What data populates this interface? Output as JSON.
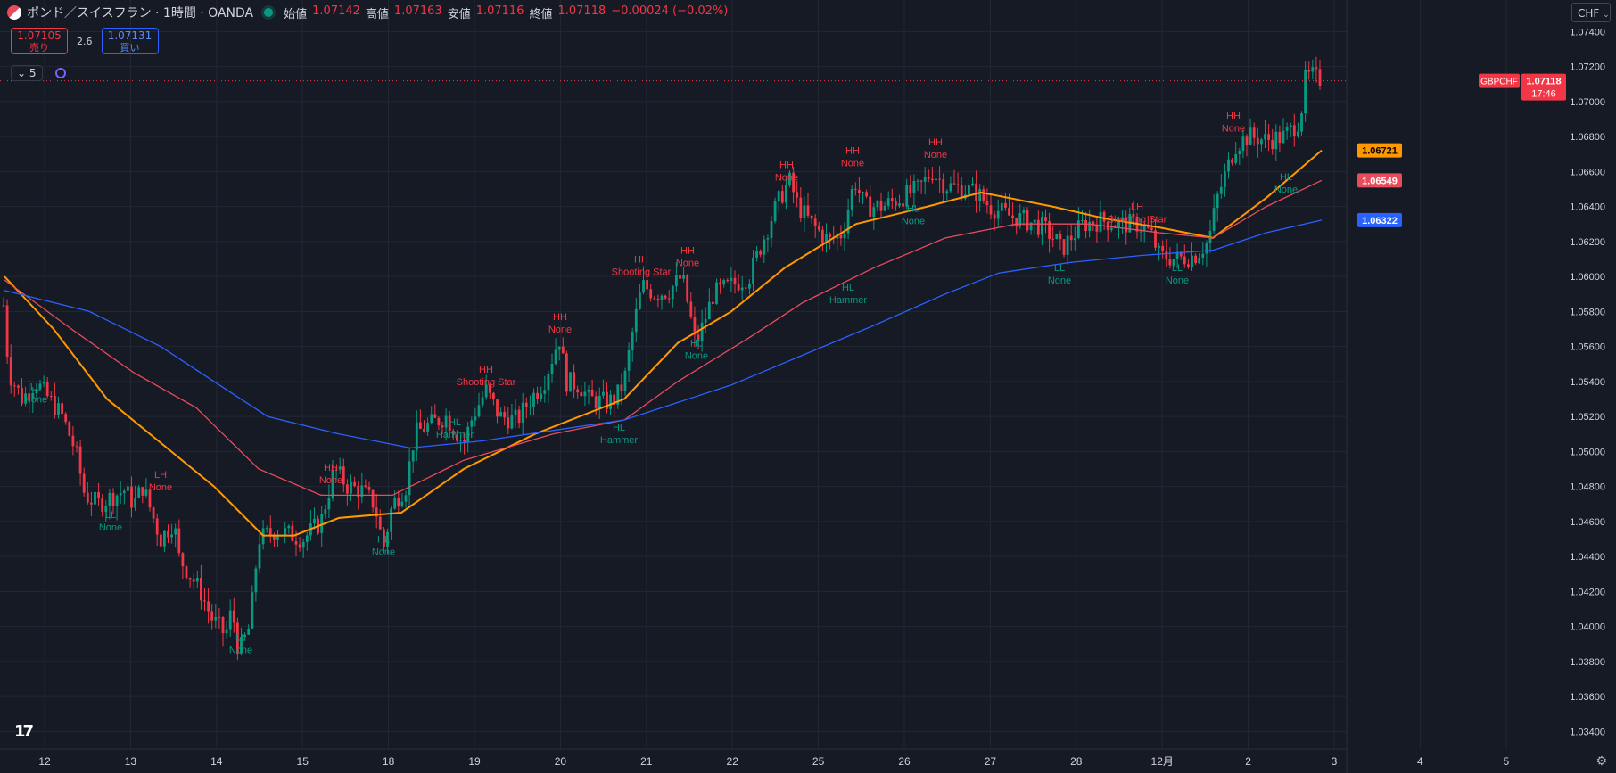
{
  "header": {
    "title": "ポンド／スイスフラン · 1時間 · OANDA",
    "ohlc": [
      {
        "label": "始値",
        "value": "1.07142"
      },
      {
        "label": "高値",
        "value": "1.07163"
      },
      {
        "label": "安値",
        "value": "1.07116"
      },
      {
        "label": "終値",
        "value": "1.07118"
      }
    ],
    "change": "−0.00024 (−0.02%)"
  },
  "trade": {
    "sell_price": "1.07105",
    "sell_label": "売り",
    "spread": "2.6",
    "buy_price": "1.07131",
    "buy_label": "買い"
  },
  "indicators": {
    "count": "5"
  },
  "currency": "CHF",
  "colors": {
    "background": "#161a25",
    "up": "#089981",
    "down": "#f23645",
    "ma_fast": "#ff9800",
    "ma_mid": "#e84c5a",
    "ma_slow": "#2962ff"
  },
  "icons": [
    "symbol-flag-icon",
    "live-dot-icon",
    "chevron-down-icon",
    "loading-icon",
    "tradingview-logo-icon",
    "gear-icon"
  ],
  "chart_data": {
    "type": "candlestick",
    "symbol_tag": "GBPCHF",
    "last_price": 1.07118,
    "countdown": "17:46",
    "ylim": [
      1.033,
      1.0758
    ],
    "y_ticks": [
      1.034,
      1.036,
      1.038,
      1.04,
      1.042,
      1.044,
      1.046,
      1.048,
      1.05,
      1.052,
      1.054,
      1.056,
      1.058,
      1.06,
      1.062,
      1.064,
      1.066,
      1.068,
      1.07,
      1.072,
      1.074
    ],
    "x_ticks": [
      "12",
      "13",
      "14",
      "15",
      "18",
      "19",
      "20",
      "21",
      "22",
      "25",
      "26",
      "27",
      "28",
      "12月",
      "2",
      "3",
      "4",
      "5"
    ],
    "price_path": [
      [
        0,
        1.06
      ],
      [
        3,
        1.059
      ],
      [
        10,
        1.0545
      ],
      [
        25,
        1.053
      ],
      [
        40,
        1.054
      ],
      [
        70,
        1.052
      ],
      [
        85,
        1.05
      ],
      [
        95,
        1.0475
      ],
      [
        110,
        1.047
      ],
      [
        140,
        1.0478
      ],
      [
        150,
        1.047
      ],
      [
        160,
        1.048
      ],
      [
        180,
        1.045
      ],
      [
        195,
        1.046
      ],
      [
        200,
        1.044
      ],
      [
        225,
        1.042
      ],
      [
        237,
        1.0405
      ],
      [
        253,
        1.0395
      ],
      [
        260,
        1.041
      ],
      [
        268,
        1.0385
      ],
      [
        280,
        1.04
      ],
      [
        290,
        1.045
      ],
      [
        310,
        1.0455
      ],
      [
        340,
        1.045
      ],
      [
        360,
        1.046
      ],
      [
        375,
        1.049
      ],
      [
        390,
        1.048
      ],
      [
        405,
        1.0478
      ],
      [
        420,
        1.047
      ],
      [
        430,
        1.0445
      ],
      [
        440,
        1.047
      ],
      [
        455,
        1.048
      ],
      [
        465,
        1.051
      ],
      [
        480,
        1.0515
      ],
      [
        500,
        1.052
      ],
      [
        520,
        1.0505
      ],
      [
        530,
        1.052
      ],
      [
        545,
        1.0535
      ],
      [
        560,
        1.052
      ],
      [
        580,
        1.0518
      ],
      [
        595,
        1.053
      ],
      [
        610,
        1.054
      ],
      [
        627,
        1.0565
      ],
      [
        635,
        1.054
      ],
      [
        650,
        1.0538
      ],
      [
        660,
        1.053
      ],
      [
        680,
        1.0528
      ],
      [
        690,
        1.053
      ],
      [
        700,
        1.054
      ],
      [
        710,
        1.057
      ],
      [
        720,
        1.0595
      ],
      [
        735,
        1.059
      ],
      [
        750,
        1.0592
      ],
      [
        765,
        1.06
      ],
      [
        775,
        1.0575
      ],
      [
        780,
        1.056
      ],
      [
        790,
        1.0575
      ],
      [
        800,
        1.059
      ],
      [
        820,
        1.0595
      ],
      [
        840,
        1.06
      ],
      [
        855,
        1.062
      ],
      [
        870,
        1.064
      ],
      [
        885,
        1.0655
      ],
      [
        895,
        1.064
      ],
      [
        910,
        1.063
      ],
      [
        930,
        1.062
      ],
      [
        945,
        1.0625
      ],
      [
        958,
        1.0655
      ],
      [
        970,
        1.064
      ],
      [
        990,
        1.064
      ],
      [
        1010,
        1.0645
      ],
      [
        1030,
        1.065
      ],
      [
        1045,
        1.066
      ],
      [
        1060,
        1.0652
      ],
      [
        1080,
        1.065
      ],
      [
        1095,
        1.0648
      ],
      [
        1110,
        1.064
      ],
      [
        1130,
        1.0635
      ],
      [
        1150,
        1.0632
      ],
      [
        1170,
        1.0628
      ],
      [
        1185,
        1.062
      ],
      [
        1190,
        1.0615
      ],
      [
        1200,
        1.0622
      ],
      [
        1215,
        1.063
      ],
      [
        1235,
        1.0632
      ],
      [
        1255,
        1.063
      ],
      [
        1275,
        1.063
      ],
      [
        1290,
        1.0625
      ],
      [
        1300,
        1.0612
      ],
      [
        1320,
        1.061
      ],
      [
        1340,
        1.0612
      ],
      [
        1355,
        1.062
      ],
      [
        1365,
        1.0645
      ],
      [
        1375,
        1.066
      ],
      [
        1385,
        1.0675
      ],
      [
        1400,
        1.068
      ],
      [
        1420,
        1.0678
      ],
      [
        1440,
        1.068
      ],
      [
        1450,
        1.0685
      ],
      [
        1458,
        1.069
      ],
      [
        1463,
        1.0712
      ],
      [
        1470,
        1.0715
      ],
      [
        1482,
        1.07118
      ]
    ],
    "moving_averages": [
      {
        "color": "#ff9800",
        "last": 1.06721,
        "points": [
          [
            5,
            1.06
          ],
          [
            60,
            1.057
          ],
          [
            120,
            1.053
          ],
          [
            180,
            1.0505
          ],
          [
            240,
            1.048
          ],
          [
            295,
            1.0452
          ],
          [
            330,
            1.0452
          ],
          [
            380,
            1.0462
          ],
          [
            450,
            1.0465
          ],
          [
            520,
            1.049
          ],
          [
            600,
            1.051
          ],
          [
            700,
            1.053
          ],
          [
            760,
            1.0562
          ],
          [
            820,
            1.058
          ],
          [
            880,
            1.0605
          ],
          [
            960,
            1.063
          ],
          [
            1040,
            1.064
          ],
          [
            1100,
            1.0648
          ],
          [
            1180,
            1.064
          ],
          [
            1240,
            1.0633
          ],
          [
            1300,
            1.0628
          ],
          [
            1360,
            1.0622
          ],
          [
            1420,
            1.0645
          ],
          [
            1482,
            1.06721
          ]
        ]
      },
      {
        "color": "#e84c5a",
        "last": 1.06549,
        "points": [
          [
            5,
            1.0598
          ],
          [
            80,
            1.057
          ],
          [
            150,
            1.0545
          ],
          [
            220,
            1.0525
          ],
          [
            290,
            1.049
          ],
          [
            360,
            1.0475
          ],
          [
            440,
            1.0475
          ],
          [
            520,
            1.0495
          ],
          [
            620,
            1.051
          ],
          [
            700,
            1.0518
          ],
          [
            760,
            1.054
          ],
          [
            840,
            1.0565
          ],
          [
            900,
            1.0585
          ],
          [
            980,
            1.0605
          ],
          [
            1060,
            1.0622
          ],
          [
            1140,
            1.063
          ],
          [
            1220,
            1.063
          ],
          [
            1300,
            1.0625
          ],
          [
            1360,
            1.0622
          ],
          [
            1420,
            1.064
          ],
          [
            1482,
            1.06549
          ]
        ]
      },
      {
        "color": "#2962ff",
        "last": 1.06322,
        "points": [
          [
            5,
            1.0592
          ],
          [
            100,
            1.058
          ],
          [
            180,
            1.056
          ],
          [
            240,
            1.054
          ],
          [
            300,
            1.052
          ],
          [
            380,
            1.051
          ],
          [
            460,
            1.0502
          ],
          [
            540,
            1.0506
          ],
          [
            620,
            1.0512
          ],
          [
            700,
            1.0518
          ],
          [
            760,
            1.0528
          ],
          [
            820,
            1.0538
          ],
          [
            900,
            1.0555
          ],
          [
            980,
            1.0572
          ],
          [
            1060,
            1.059
          ],
          [
            1120,
            1.0602
          ],
          [
            1200,
            1.0608
          ],
          [
            1280,
            1.0612
          ],
          [
            1360,
            1.0615
          ],
          [
            1420,
            1.0625
          ],
          [
            1482,
            1.06322
          ]
        ]
      }
    ],
    "annotations": [
      {
        "type": "LL",
        "pattern": "None",
        "x": 40,
        "price": 1.0535
      },
      {
        "type": "LL",
        "pattern": "None",
        "x": 124,
        "price": 1.0462
      },
      {
        "type": "LH",
        "pattern": "None",
        "x": 180,
        "price": 1.0485
      },
      {
        "type": "LL",
        "pattern": "None",
        "x": 270,
        "price": 1.0392
      },
      {
        "type": "HH",
        "pattern": "None",
        "x": 371,
        "price": 1.0489
      },
      {
        "type": "HL",
        "pattern": "None",
        "x": 430,
        "price": 1.0448
      },
      {
        "type": "HL",
        "pattern": "Hammer",
        "x": 510,
        "price": 1.0515
      },
      {
        "type": "HH",
        "pattern": "Shooting Star",
        "x": 545,
        "price": 1.0545
      },
      {
        "type": "HH",
        "pattern": "None",
        "x": 628,
        "price": 1.0575
      },
      {
        "type": "HL",
        "pattern": "Hammer",
        "x": 694,
        "price": 1.0512
      },
      {
        "type": "HH",
        "pattern": "Shooting Star",
        "x": 719,
        "price": 1.0608
      },
      {
        "type": "HH",
        "pattern": "None",
        "x": 771,
        "price": 1.0613
      },
      {
        "type": "HL",
        "pattern": "None",
        "x": 781,
        "price": 1.056
      },
      {
        "type": "HH",
        "pattern": "None",
        "x": 882,
        "price": 1.0662
      },
      {
        "type": "HL",
        "pattern": "Hammer",
        "x": 951,
        "price": 1.0592
      },
      {
        "type": "HH",
        "pattern": "None",
        "x": 956,
        "price": 1.067
      },
      {
        "type": "HL",
        "pattern": "None",
        "x": 1024,
        "price": 1.0637
      },
      {
        "type": "HH",
        "pattern": "None",
        "x": 1049,
        "price": 1.0675
      },
      {
        "type": "LL",
        "pattern": "None",
        "x": 1188,
        "price": 1.0603
      },
      {
        "type": "LH",
        "pattern": "Shooting Star",
        "x": 1275,
        "price": 1.0638
      },
      {
        "type": "LL",
        "pattern": "None",
        "x": 1320,
        "price": 1.0603
      },
      {
        "type": "HH",
        "pattern": "None",
        "x": 1383,
        "price": 1.069
      },
      {
        "type": "HL",
        "pattern": "None",
        "x": 1442,
        "price": 1.0655
      }
    ],
    "grid": true
  }
}
